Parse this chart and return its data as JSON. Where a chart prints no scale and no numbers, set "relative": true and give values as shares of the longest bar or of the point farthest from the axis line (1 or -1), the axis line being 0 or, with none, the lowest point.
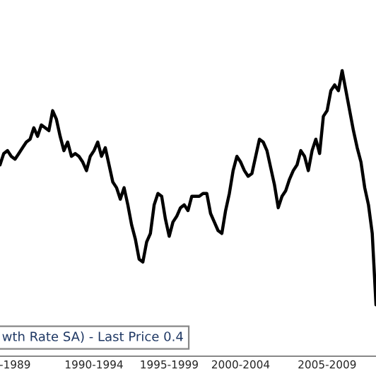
{
  "chart_data": {
    "type": "line",
    "relative": true,
    "legend": false,
    "grid": false,
    "categories": [
      null,
      null,
      null,
      null,
      "-1989",
      null,
      null,
      null,
      null,
      null,
      null,
      null,
      null,
      null,
      null,
      null,
      null,
      null,
      null,
      null,
      null,
      null,
      null,
      null,
      null,
      "1990-1994",
      null,
      null,
      null,
      null,
      null,
      null,
      null,
      null,
      null,
      null,
      null,
      null,
      null,
      null,
      null,
      null,
      null,
      null,
      null,
      "1995-1999",
      null,
      null,
      null,
      null,
      null,
      null,
      null,
      null,
      null,
      null,
      null,
      null,
      null,
      null,
      null,
      null,
      null,
      null,
      "2000-2004",
      null,
      null,
      null,
      null,
      null,
      null,
      null,
      null,
      null,
      null,
      null,
      null,
      null,
      null,
      null,
      null,
      null,
      null,
      null,
      null,
      null,
      null,
      "2005-2009",
      null,
      null,
      null,
      null,
      null,
      null,
      null,
      null,
      null,
      null,
      null,
      null,
      null
    ],
    "series": [
      {
        "color": "#000000",
        "values": [
          0.67,
          0.71,
          0.72,
          0.7,
          0.69,
          0.71,
          0.73,
          0.75,
          0.76,
          0.8,
          0.77,
          0.81,
          0.8,
          0.79,
          0.86,
          0.83,
          0.77,
          0.72,
          0.75,
          0.7,
          0.71,
          0.7,
          0.68,
          0.65,
          0.7,
          0.72,
          0.75,
          0.7,
          0.73,
          0.67,
          0.61,
          0.59,
          0.55,
          0.59,
          0.53,
          0.46,
          0.41,
          0.34,
          0.33,
          0.4,
          0.43,
          0.53,
          0.57,
          0.56,
          0.48,
          0.42,
          0.47,
          0.49,
          0.52,
          0.53,
          0.51,
          0.56,
          0.56,
          0.56,
          0.57,
          0.57,
          0.5,
          0.47,
          0.44,
          0.43,
          0.51,
          0.57,
          0.65,
          0.7,
          0.68,
          0.65,
          0.63,
          0.64,
          0.7,
          0.76,
          0.75,
          0.72,
          0.66,
          0.6,
          0.52,
          0.56,
          0.58,
          0.62,
          0.65,
          0.67,
          0.72,
          0.7,
          0.65,
          0.72,
          0.76,
          0.71,
          0.84,
          0.86,
          0.93,
          0.95,
          0.93,
          1,
          0.93,
          0.86,
          0.79,
          0.73,
          0.68,
          0.59,
          0.53,
          0.43,
          0.18
        ]
      }
    ],
    "annotations": [
      "wth Rate SA) - Last Price 0.4"
    ]
  }
}
